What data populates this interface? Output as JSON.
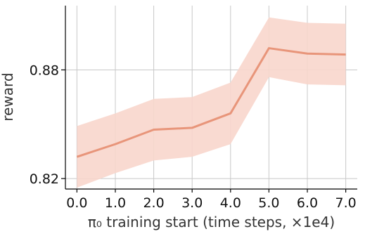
{
  "chart_data": {
    "type": "line",
    "xlabel": "π₀ training start (time steps, ×1e4)",
    "ylabel": "reward",
    "x": [
      0,
      1,
      2,
      3,
      4,
      5,
      6,
      7
    ],
    "x_tick_labels": [
      "0.0",
      "1.0",
      "2.0",
      "3.0",
      "4.0",
      "5.0",
      "6.0",
      "7.0"
    ],
    "y_ticks": [
      0.82,
      0.88
    ],
    "y_tick_labels": [
      "0.82",
      "0.88"
    ],
    "ylim": [
      0.8146,
      0.9155
    ],
    "xlim": [
      -0.3,
      7.3
    ],
    "grid": true,
    "series": [
      {
        "values": [
          0.832,
          0.839,
          0.847,
          0.848,
          0.856,
          0.892,
          0.889,
          0.8885
        ],
        "lower": [
          0.815,
          0.823,
          0.83,
          0.832,
          0.839,
          0.876,
          0.872,
          0.8715
        ],
        "upper": [
          0.849,
          0.856,
          0.864,
          0.865,
          0.873,
          0.909,
          0.906,
          0.9055
        ],
        "line_color": "#e8957a",
        "band_color": "#f8d6cc"
      }
    ]
  }
}
